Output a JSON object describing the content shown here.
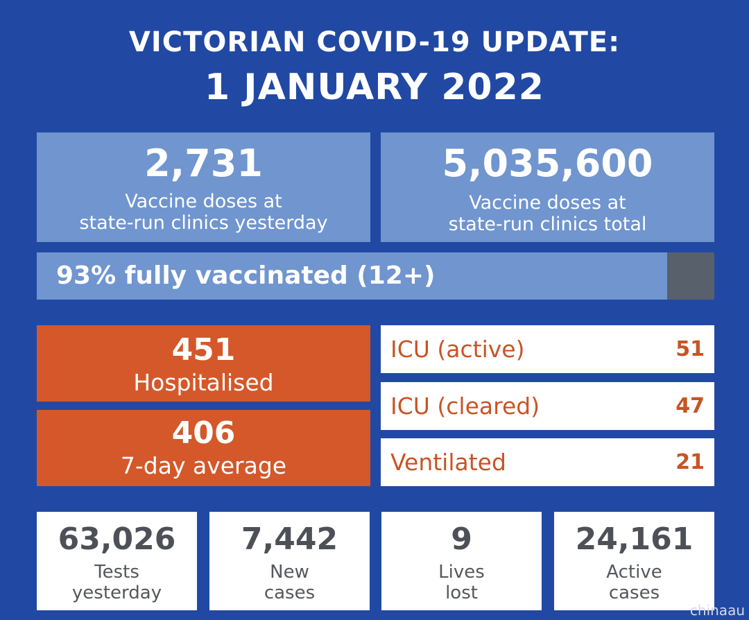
{
  "header": {
    "line1": "VICTORIAN COVID-19 UPDATE:",
    "line2": "1 JANUARY 2022"
  },
  "vaccine": {
    "yesterday": {
      "value": "2,731",
      "line1": "Vaccine doses at",
      "line2": "state-run clinics yesterday"
    },
    "total": {
      "value": "5,035,600",
      "line1": "Vaccine doses at",
      "line2": "state-run clinics total"
    },
    "fully_vaccinated": {
      "label": "93% fully vaccinated (12+)",
      "percent": 93
    }
  },
  "hospital": {
    "hospitalised": {
      "value": "451",
      "label": "Hospitalised"
    },
    "average": {
      "value": "406",
      "label": "7-day average"
    },
    "icu_rows": [
      {
        "label": "ICU (active)",
        "value": "51"
      },
      {
        "label": "ICU (cleared)",
        "value": "47"
      },
      {
        "label": "Ventilated",
        "value": "21"
      }
    ]
  },
  "stats": [
    {
      "value": "63,026",
      "line1": "Tests",
      "line2": "yesterday"
    },
    {
      "value": "7,442",
      "line1": "New",
      "line2": "cases"
    },
    {
      "value": "9",
      "line1": "Lives",
      "line2": "lost"
    },
    {
      "value": "24,161",
      "line1": "Active",
      "line2": "cases"
    }
  ],
  "watermark": "chinaau",
  "colors": {
    "background": "#2149a3",
    "light_panel": "#7095cf",
    "orange": "#d4582a",
    "progress_remainder": "#58606c",
    "icu_text": "#c85424"
  }
}
